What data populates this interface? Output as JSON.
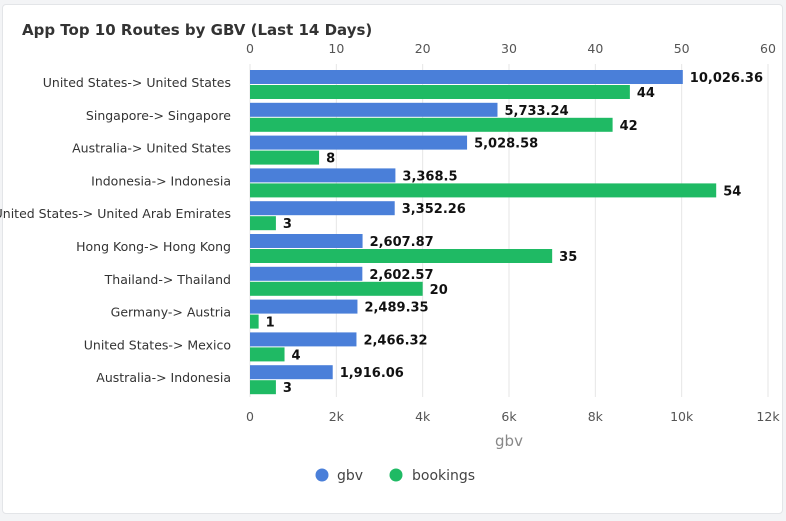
{
  "chart_data": {
    "type": "bar",
    "orientation": "horizontal",
    "title": "App Top 10 Routes by GBV (Last 14 Days)",
    "categories": [
      "United States-> United States",
      "Singapore-> Singapore",
      "Australia-> United States",
      "Indonesia-> Indonesia",
      "United States-> United Arab Emirates",
      "Hong Kong-> Hong Kong",
      "Thailand-> Thailand",
      "Germany-> Austria",
      "United States-> Mexico",
      "Australia-> Indonesia"
    ],
    "series": [
      {
        "name": "gbv",
        "axis": "bottom",
        "color": "#4a7fd9",
        "values": [
          10026.36,
          5733.24,
          5028.58,
          3368.5,
          3352.26,
          2607.87,
          2602.57,
          2489.35,
          2466.32,
          1916.06
        ],
        "labels": [
          "10,026.36",
          "5,733.24",
          "5,028.58",
          "3,368.5",
          "3,352.26",
          "2,607.87",
          "2,602.57",
          "2,489.35",
          "2,466.32",
          "1,916.06"
        ]
      },
      {
        "name": "bookings",
        "axis": "top",
        "color": "#1fba64",
        "values": [
          44,
          42,
          8,
          54,
          3,
          35,
          20,
          1,
          4,
          3
        ],
        "labels": [
          "44",
          "42",
          "8",
          "54",
          "3",
          "35",
          "20",
          "1",
          "4",
          "3"
        ]
      }
    ],
    "bottom_axis": {
      "label": "gbv",
      "range": [
        0,
        12000
      ],
      "ticks": [
        0,
        2000,
        4000,
        6000,
        8000,
        10000,
        12000
      ],
      "tick_labels": [
        "0",
        "2k",
        "4k",
        "6k",
        "8k",
        "10k",
        "12k"
      ]
    },
    "top_axis": {
      "label": "",
      "range": [
        0,
        60
      ],
      "ticks": [
        0,
        10,
        20,
        30,
        40,
        50,
        60
      ],
      "tick_labels": [
        "0",
        "10",
        "20",
        "30",
        "40",
        "50",
        "60"
      ]
    },
    "legend": [
      "gbv",
      "bookings"
    ],
    "legend_position": "bottom",
    "grid": true
  }
}
